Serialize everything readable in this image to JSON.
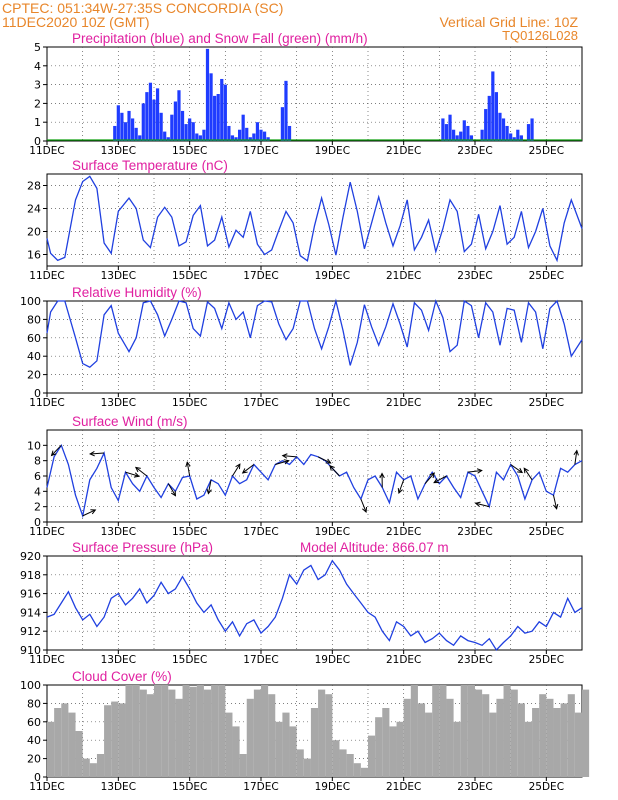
{
  "header": {
    "line1": "CPTEC:   051:34W-27:35S   CONCORDIA (SC)",
    "line2": "11DEC2020  10Z (GMT)",
    "grid_note": "Vertical Grid Line: 10Z",
    "code": "TQ0126L028"
  },
  "colors": {
    "header": "#e8862a",
    "panel_title": "#e020a0",
    "precip": "#1f3cff",
    "snow": "#10a010",
    "line": "#2040e0",
    "wind_arrow": "#000000",
    "cloud": "#a8a8a8",
    "grid": "#000000"
  },
  "chart_data": [
    {
      "type": "bar",
      "title": "Precipitation (blue) and Snow Fall (green) (mm/h)",
      "x_ticks": [
        "11DEC",
        "13DEC",
        "15DEC",
        "17DEC",
        "19DEC",
        "21DEC",
        "23DEC",
        "25DEC"
      ],
      "x_range_days": [
        0,
        15
      ],
      "ylim": [
        0,
        5
      ],
      "yticks": [
        0,
        1,
        2,
        3,
        4,
        5
      ],
      "grid": "dotted",
      "series": [
        {
          "name": "precipitation",
          "color": "#1f3cff",
          "t": [
            1.9,
            2.0,
            2.1,
            2.2,
            2.3,
            2.4,
            2.5,
            2.6,
            2.7,
            2.8,
            2.9,
            3.0,
            3.1,
            3.2,
            3.3,
            3.4,
            3.5,
            3.6,
            3.7,
            3.8,
            3.9,
            4.0,
            4.1,
            4.2,
            4.3,
            4.4,
            4.5,
            4.6,
            4.7,
            4.8,
            4.9,
            5.0,
            5.1,
            5.2,
            5.3,
            5.4,
            5.5,
            5.6,
            5.7,
            5.8,
            5.9,
            6.0,
            6.1,
            6.2,
            6.6,
            6.7,
            6.8,
            11.1,
            11.2,
            11.3,
            11.4,
            11.5,
            11.6,
            11.7,
            11.8,
            11.9,
            12.2,
            12.3,
            12.4,
            12.5,
            12.6,
            12.7,
            12.8,
            12.9,
            13.0,
            13.1,
            13.2,
            13.3,
            13.5,
            13.6
          ],
          "values": [
            0.8,
            1.9,
            1.5,
            1.0,
            1.6,
            1.2,
            0.7,
            0.3,
            2.0,
            2.6,
            3.1,
            2.2,
            2.8,
            1.5,
            0.5,
            0.2,
            1.4,
            2.1,
            2.7,
            1.6,
            0.9,
            1.2,
            1.0,
            0.4,
            0.3,
            0.6,
            4.9,
            3.6,
            2.4,
            2.5,
            3.3,
            3.0,
            0.8,
            0.3,
            0.2,
            0.6,
            1.4,
            0.7,
            0.2,
            0.4,
            1.0,
            0.6,
            0.5,
            0.2,
            1.8,
            3.2,
            0.8,
            1.2,
            0.9,
            1.4,
            0.6,
            0.3,
            0.5,
            1.1,
            0.8,
            0.3,
            0.6,
            1.7,
            2.4,
            3.7,
            2.6,
            1.5,
            1.2,
            0.8,
            0.4,
            0.2,
            0.6,
            0.3,
            0.9,
            1.2
          ]
        },
        {
          "name": "snowfall",
          "color": "#10a010",
          "values": []
        }
      ]
    },
    {
      "type": "line",
      "title": "Surface Temperature (nC)",
      "x_ticks": [
        "11DEC",
        "13DEC",
        "15DEC",
        "17DEC",
        "19DEC",
        "21DEC",
        "23DEC",
        "25DEC"
      ],
      "x_range_days": [
        0,
        15
      ],
      "ylim": [
        14,
        30
      ],
      "yticks": [
        16,
        20,
        24,
        28
      ],
      "grid": "dotted",
      "t": [
        0.0,
        0.1,
        0.3,
        0.5,
        0.8,
        1.0,
        1.2,
        1.4,
        1.6,
        1.8,
        2.0,
        2.3,
        2.5,
        2.7,
        2.9,
        3.1,
        3.3,
        3.5,
        3.7,
        3.9,
        4.1,
        4.3,
        4.5,
        4.7,
        4.9,
        5.1,
        5.3,
        5.5,
        5.7,
        5.9,
        6.1,
        6.3,
        6.5,
        6.7,
        6.9,
        7.1,
        7.3,
        7.5,
        7.7,
        7.9,
        8.1,
        8.3,
        8.5,
        8.7,
        8.9,
        9.1,
        9.3,
        9.5,
        9.7,
        9.9,
        10.1,
        10.3,
        10.5,
        10.7,
        10.9,
        11.1,
        11.3,
        11.5,
        11.7,
        11.9,
        12.1,
        12.3,
        12.5,
        12.7,
        12.9,
        13.1,
        13.3,
        13.5,
        13.7,
        13.9,
        14.1,
        14.3,
        14.5,
        14.7,
        15.0
      ],
      "values": [
        18.8,
        16.2,
        15.0,
        15.5,
        25.5,
        28.7,
        29.6,
        27.5,
        18.0,
        16.2,
        23.5,
        25.8,
        24.0,
        18.5,
        17.2,
        22.5,
        24.2,
        22.5,
        17.5,
        18.2,
        22.8,
        24.5,
        17.5,
        18.5,
        22.5,
        17.3,
        20.2,
        19.0,
        23.5,
        17.8,
        16.0,
        16.8,
        20.2,
        23.5,
        21.5,
        15.8,
        14.9,
        21.0,
        25.8,
        21.2,
        15.9,
        22.5,
        28.6,
        23.5,
        17.0,
        21.5,
        26.0,
        21.5,
        17.5,
        21.0,
        25.5,
        16.8,
        19.0,
        22.0,
        16.5,
        20.5,
        25.5,
        23.5,
        16.5,
        17.8,
        23.0,
        17.0,
        20.0,
        24.5,
        17.8,
        19.0,
        23.5,
        17.2,
        20.0,
        24.0,
        17.5,
        15.0,
        21.5,
        25.5,
        20.5
      ]
    },
    {
      "type": "line",
      "title": "Relative Humidity (%)",
      "x_ticks": [
        "11DEC",
        "13DEC",
        "15DEC",
        "17DEC",
        "19DEC",
        "21DEC",
        "23DEC",
        "25DEC"
      ],
      "x_range_days": [
        0,
        15
      ],
      "ylim": [
        0,
        100
      ],
      "yticks": [
        0,
        20,
        40,
        60,
        80,
        100
      ],
      "grid": "dotted",
      "t": [
        0.0,
        0.1,
        0.3,
        0.5,
        0.8,
        1.0,
        1.2,
        1.4,
        1.6,
        1.8,
        2.0,
        2.3,
        2.5,
        2.7,
        2.9,
        3.1,
        3.3,
        3.5,
        3.7,
        3.9,
        4.1,
        4.3,
        4.5,
        4.7,
        4.9,
        5.1,
        5.3,
        5.5,
        5.7,
        5.9,
        6.1,
        6.3,
        6.5,
        6.7,
        6.9,
        7.1,
        7.3,
        7.5,
        7.7,
        7.9,
        8.1,
        8.3,
        8.5,
        8.7,
        8.9,
        9.1,
        9.3,
        9.5,
        9.7,
        9.9,
        10.1,
        10.3,
        10.5,
        10.7,
        10.9,
        11.1,
        11.3,
        11.5,
        11.7,
        11.9,
        12.1,
        12.3,
        12.5,
        12.7,
        12.9,
        13.1,
        13.3,
        13.5,
        13.7,
        13.9,
        14.1,
        14.3,
        14.5,
        14.7,
        15.0
      ],
      "values": [
        65,
        88,
        100,
        100,
        60,
        32,
        28,
        35,
        85,
        95,
        65,
        45,
        60,
        98,
        100,
        85,
        62,
        80,
        100,
        98,
        70,
        62,
        99,
        92,
        70,
        98,
        80,
        88,
        60,
        95,
        100,
        99,
        75,
        58,
        70,
        100,
        100,
        70,
        48,
        72,
        100,
        68,
        30,
        55,
        96,
        72,
        52,
        72,
        97,
        75,
        50,
        98,
        90,
        68,
        100,
        82,
        45,
        52,
        100,
        95,
        60,
        98,
        88,
        52,
        92,
        90,
        55,
        98,
        88,
        48,
        92,
        100,
        75,
        40,
        58
      ]
    },
    {
      "type": "line",
      "title": "Surface Wind (m/s)",
      "x_ticks": [
        "11DEC",
        "13DEC",
        "15DEC",
        "17DEC",
        "19DEC",
        "21DEC",
        "23DEC",
        "25DEC"
      ],
      "x_range_days": [
        0,
        15
      ],
      "ylim": [
        0,
        12
      ],
      "yticks": [
        0,
        2,
        4,
        6,
        8,
        10
      ],
      "grid": "dotted",
      "t": [
        0.0,
        0.2,
        0.4,
        0.6,
        0.8,
        1.0,
        1.2,
        1.4,
        1.6,
        1.8,
        2.0,
        2.2,
        2.4,
        2.6,
        2.8,
        3.0,
        3.2,
        3.4,
        3.6,
        3.8,
        4.0,
        4.2,
        4.4,
        4.6,
        4.8,
        5.0,
        5.2,
        5.4,
        5.6,
        5.8,
        6.0,
        6.2,
        6.4,
        6.6,
        6.8,
        7.0,
        7.2,
        7.4,
        7.6,
        7.8,
        8.0,
        8.2,
        8.4,
        8.6,
        8.8,
        9.0,
        9.2,
        9.4,
        9.6,
        9.8,
        10.0,
        10.2,
        10.4,
        10.6,
        10.8,
        11.0,
        11.2,
        11.4,
        11.6,
        11.8,
        12.0,
        12.2,
        12.4,
        12.6,
        12.8,
        13.0,
        13.2,
        13.4,
        13.6,
        13.8,
        14.0,
        14.2,
        14.4,
        14.6,
        14.8,
        15.0
      ],
      "values": [
        4.5,
        8.5,
        10.0,
        7.5,
        3.5,
        0.8,
        5.5,
        7.0,
        9.0,
        4.5,
        2.8,
        6.5,
        5.0,
        4.0,
        6.0,
        4.5,
        3.2,
        5.0,
        4.0,
        5.8,
        6.0,
        3.0,
        3.5,
        5.5,
        5.0,
        3.5,
        6.0,
        5.0,
        5.5,
        7.5,
        6.5,
        5.5,
        7.5,
        8.0,
        7.5,
        8.5,
        7.5,
        8.8,
        8.5,
        8.0,
        7.0,
        6.0,
        6.5,
        4.5,
        3.0,
        5.5,
        6.0,
        4.5,
        2.5,
        6.5,
        5.5,
        6.0,
        3.0,
        5.0,
        6.5,
        5.0,
        6.0,
        4.5,
        3.2,
        6.5,
        6.0,
        4.0,
        2.0,
        6.5,
        5.5,
        7.5,
        6.0,
        3.0,
        5.5,
        6.5,
        4.0,
        3.5,
        7.0,
        6.5,
        7.5,
        8.0
      ]
    },
    {
      "type": "line",
      "title": "Surface Pressure (hPa)",
      "annotation": "Model Altitude: 866.07 m",
      "x_ticks": [
        "11DEC",
        "13DEC",
        "15DEC",
        "17DEC",
        "19DEC",
        "21DEC",
        "23DEC",
        "25DEC"
      ],
      "x_range_days": [
        0,
        15
      ],
      "ylim": [
        910,
        920
      ],
      "yticks": [
        910,
        912,
        914,
        916,
        918,
        920
      ],
      "grid": "dotted",
      "t": [
        0.0,
        0.2,
        0.4,
        0.6,
        0.8,
        1.0,
        1.2,
        1.4,
        1.6,
        1.8,
        2.0,
        2.2,
        2.4,
        2.6,
        2.8,
        3.0,
        3.2,
        3.4,
        3.6,
        3.8,
        4.0,
        4.2,
        4.4,
        4.6,
        4.8,
        5.0,
        5.2,
        5.4,
        5.6,
        5.8,
        6.0,
        6.2,
        6.4,
        6.6,
        6.8,
        7.0,
        7.2,
        7.4,
        7.6,
        7.8,
        8.0,
        8.2,
        8.4,
        8.6,
        8.8,
        9.0,
        9.2,
        9.4,
        9.6,
        9.8,
        10.0,
        10.2,
        10.4,
        10.6,
        10.8,
        11.0,
        11.2,
        11.4,
        11.6,
        11.8,
        12.0,
        12.2,
        12.4,
        12.6,
        12.8,
        13.0,
        13.2,
        13.4,
        13.6,
        13.8,
        14.0,
        14.2,
        14.4,
        14.6,
        14.8,
        15.0
      ],
      "values": [
        913.5,
        913.8,
        915.0,
        916.2,
        914.5,
        913.2,
        913.8,
        912.5,
        913.5,
        915.5,
        916.0,
        914.8,
        915.5,
        916.5,
        915.0,
        915.8,
        917.2,
        916.0,
        916.5,
        917.8,
        916.5,
        915.0,
        914.0,
        914.8,
        913.2,
        912.0,
        913.0,
        911.5,
        912.8,
        913.2,
        911.8,
        912.5,
        913.5,
        915.5,
        918.0,
        917.0,
        918.5,
        919.0,
        917.5,
        918.0,
        919.5,
        918.5,
        917.0,
        916.0,
        915.0,
        914.0,
        913.5,
        912.0,
        911.0,
        913.0,
        912.5,
        911.5,
        912.0,
        910.8,
        911.2,
        911.8,
        911.0,
        910.5,
        911.5,
        911.0,
        910.8,
        910.5,
        911.2,
        910.0,
        910.8,
        911.5,
        912.5,
        911.8,
        912.0,
        913.0,
        912.5,
        914.0,
        913.5,
        915.5,
        914.0,
        914.5
      ]
    },
    {
      "type": "bar",
      "title": "Cloud Cover (%)",
      "x_ticks": [
        "11DEC",
        "13DEC",
        "15DEC",
        "17DEC",
        "19DEC",
        "21DEC",
        "23DEC",
        "25DEC"
      ],
      "x_range_days": [
        0,
        15
      ],
      "ylim": [
        0,
        100
      ],
      "yticks": [
        0,
        20,
        40,
        60,
        80,
        100
      ],
      "grid": "dotted",
      "t": [
        0.0,
        0.2,
        0.4,
        0.6,
        0.8,
        1.0,
        1.2,
        1.4,
        1.6,
        1.8,
        2.0,
        2.2,
        2.4,
        2.6,
        2.8,
        3.0,
        3.2,
        3.4,
        3.6,
        3.8,
        4.0,
        4.2,
        4.4,
        4.6,
        4.8,
        5.0,
        5.2,
        5.4,
        5.6,
        5.8,
        6.0,
        6.2,
        6.4,
        6.6,
        6.8,
        7.0,
        7.2,
        7.4,
        7.6,
        7.8,
        8.0,
        8.2,
        8.4,
        8.6,
        8.8,
        9.0,
        9.2,
        9.4,
        9.6,
        9.8,
        10.0,
        10.2,
        10.4,
        10.6,
        10.8,
        11.0,
        11.2,
        11.4,
        11.6,
        11.8,
        12.0,
        12.2,
        12.4,
        12.6,
        12.8,
        13.0,
        13.2,
        13.4,
        13.6,
        13.8,
        14.0,
        14.2,
        14.4,
        14.6,
        14.8,
        15.0
      ],
      "values": [
        60,
        75,
        80,
        70,
        50,
        20,
        15,
        25,
        78,
        82,
        80,
        100,
        100,
        95,
        90,
        100,
        100,
        95,
        85,
        100,
        98,
        100,
        95,
        100,
        100,
        70,
        55,
        25,
        85,
        95,
        100,
        90,
        60,
        70,
        55,
        30,
        20,
        75,
        95,
        90,
        40,
        30,
        25,
        15,
        10,
        45,
        65,
        75,
        55,
        60,
        85,
        100,
        80,
        70,
        100,
        100,
        85,
        60,
        100,
        100,
        95,
        90,
        70,
        85,
        100,
        95,
        80,
        60,
        75,
        90,
        85,
        75,
        80,
        90,
        70,
        95
      ]
    }
  ]
}
